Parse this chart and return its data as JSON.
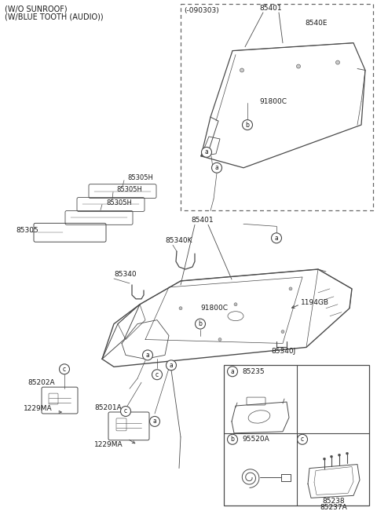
{
  "bg_color": "#ffffff",
  "line_color": "#4a4a4a",
  "text_color": "#1a1a1a",
  "fig_width": 4.8,
  "fig_height": 6.51,
  "dpi": 100,
  "title_line1": "(W/O SUNROOF)",
  "title_line2": "(W/BLUE TOOTH (AUDIO))",
  "parts": {
    "top_box_label": "(-090303)",
    "85401_top": "85401",
    "8540E": "8540E",
    "91800C_top": "91800C",
    "85305": "85305",
    "85305H": "85305H",
    "85340": "85340",
    "85340K": "85340K",
    "85401_main": "85401",
    "91800C_main": "91800C",
    "1194GB": "1194GB",
    "85340J": "85340J",
    "85202A": "85202A",
    "85201A": "85201A",
    "1229MA_1": "1229MA",
    "1229MA_2": "1229MA",
    "85235": "85235",
    "95520A": "95520A",
    "85238": "85238",
    "85237A": "85237A"
  }
}
